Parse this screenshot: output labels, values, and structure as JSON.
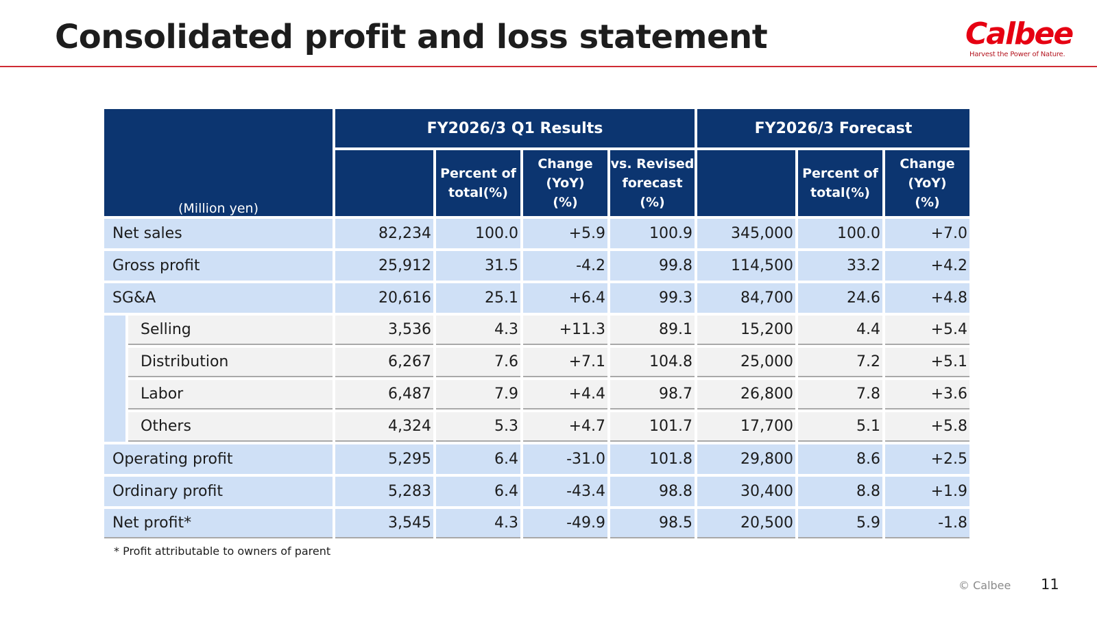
{
  "title": "Consolidated profit and loss statement",
  "logo": {
    "word": "Calbee",
    "tagline": "Harvest the Power of Nature."
  },
  "table": {
    "unit": "(Million yen)",
    "results_header": "FY2026/3 Q1 Results",
    "forecast_header": "FY2026/3 Forecast",
    "sub_headers": {
      "percent_of_total": [
        "Percent of",
        "total(%)"
      ],
      "change_yoy": [
        "Change",
        "(YoY)",
        "(%)"
      ],
      "vs_revised": [
        "vs. Revised",
        "forecast",
        "(%)"
      ]
    },
    "rows": [
      {
        "label": "Net sales",
        "q1": "82,234",
        "q1_pct": "100.0",
        "q1_yoy": "+5.9",
        "q1_vs": "100.9",
        "fc": "345,000",
        "fc_pct": "100.0",
        "fc_yoy": "+7.0"
      },
      {
        "label": "Gross profit",
        "q1": "25,912",
        "q1_pct": "31.5",
        "q1_yoy": "-4.2",
        "q1_vs": "99.8",
        "fc": "114,500",
        "fc_pct": "33.2",
        "fc_yoy": "+4.2"
      },
      {
        "label": "SG&A",
        "q1": "20,616",
        "q1_pct": "25.1",
        "q1_yoy": "+6.4",
        "q1_vs": "99.3",
        "fc": "84,700",
        "fc_pct": "24.6",
        "fc_yoy": "+4.8"
      },
      {
        "label": "Selling",
        "q1": "3,536",
        "q1_pct": "4.3",
        "q1_yoy": "+11.3",
        "q1_vs": "89.1",
        "fc": "15,200",
        "fc_pct": "4.4",
        "fc_yoy": "+5.4"
      },
      {
        "label": "Distribution",
        "q1": "6,267",
        "q1_pct": "7.6",
        "q1_yoy": "+7.1",
        "q1_vs": "104.8",
        "fc": "25,000",
        "fc_pct": "7.2",
        "fc_yoy": "+5.1"
      },
      {
        "label": "Labor",
        "q1": "6,487",
        "q1_pct": "7.9",
        "q1_yoy": "+4.4",
        "q1_vs": "98.7",
        "fc": "26,800",
        "fc_pct": "7.8",
        "fc_yoy": "+3.6"
      },
      {
        "label": "Others",
        "q1": "4,324",
        "q1_pct": "5.3",
        "q1_yoy": "+4.7",
        "q1_vs": "101.7",
        "fc": "17,700",
        "fc_pct": "5.1",
        "fc_yoy": "+5.8"
      },
      {
        "label": "Operating profit",
        "q1": "5,295",
        "q1_pct": "6.4",
        "q1_yoy": "-31.0",
        "q1_vs": "101.8",
        "fc": "29,800",
        "fc_pct": "8.6",
        "fc_yoy": "+2.5"
      },
      {
        "label": "Ordinary profit",
        "q1": "5,283",
        "q1_pct": "6.4",
        "q1_yoy": "-43.4",
        "q1_vs": "98.8",
        "fc": "30,400",
        "fc_pct": "8.8",
        "fc_yoy": "+1.9"
      },
      {
        "label": "Net profit*",
        "q1": "3,545",
        "q1_pct": "4.3",
        "q1_yoy": "-49.9",
        "q1_vs": "98.5",
        "fc": "20,500",
        "fc_pct": "5.9",
        "fc_yoy": "-1.8"
      }
    ]
  },
  "footnote": "* Profit attributable to owners of parent",
  "copyright": "© Calbee",
  "page_number": "11",
  "colors": {
    "header_navy": "#0c3570",
    "row_blue": "#cfe0f6",
    "sub_gray": "#f2f2f2",
    "brand_red": "#e60012",
    "rule_red": "#cf2a34"
  }
}
